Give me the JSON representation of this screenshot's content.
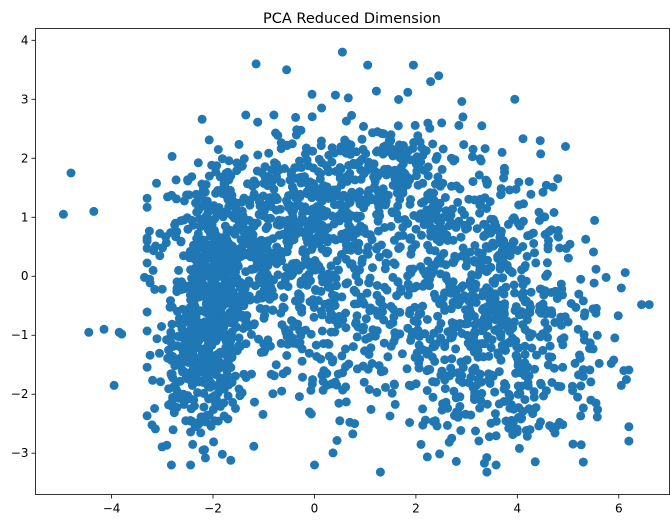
{
  "chart_data": {
    "type": "scatter",
    "title": "PCA Reduced Dimension",
    "xlabel": "",
    "ylabel": "",
    "xlim": [
      -5.5,
      7.0
    ],
    "ylim": [
      -3.7,
      4.2
    ],
    "xticks": [
      -4,
      -2,
      0,
      2,
      4,
      6
    ],
    "xtick_labels": [
      "−4",
      "−2",
      "0",
      "2",
      "4",
      "6"
    ],
    "yticks": [
      -3,
      -2,
      -1,
      0,
      1,
      2,
      3,
      4
    ],
    "ytick_labels": [
      "−3",
      "−2",
      "−1",
      "0",
      "1",
      "2",
      "3",
      "4"
    ],
    "grid": false,
    "legend": "none",
    "series": [
      {
        "color": "#1f77b4",
        "marker": "circle",
        "points": [
          [
            -4.95,
            1.05
          ],
          [
            -4.8,
            1.75
          ],
          [
            -4.35,
            1.1
          ],
          [
            -4.45,
            -0.95
          ],
          [
            -4.15,
            -0.9
          ],
          [
            -3.85,
            -0.95
          ],
          [
            -3.8,
            -0.98
          ],
          [
            -3.95,
            -1.85
          ],
          [
            -3.35,
            -0.02
          ],
          [
            -3.25,
            -0.05
          ],
          [
            -1.15,
            3.6
          ],
          [
            -0.55,
            3.5
          ],
          [
            0.55,
            3.8
          ],
          [
            1.05,
            3.58
          ],
          [
            1.95,
            3.58
          ],
          [
            2.45,
            3.4
          ],
          [
            3.95,
            3.0
          ],
          [
            4.95,
            2.2
          ],
          [
            4.45,
            2.3
          ],
          [
            5.25,
            -0.05
          ],
          [
            5.55,
            0.12
          ],
          [
            5.75,
            -0.02
          ],
          [
            6.05,
            -0.2
          ],
          [
            6.45,
            -0.48
          ],
          [
            6.6,
            -0.48
          ],
          [
            6.1,
            -1.6
          ],
          [
            6.05,
            -1.85
          ],
          [
            6.15,
            -1.75
          ],
          [
            5.85,
            -1.48
          ],
          [
            5.9,
            -1.42
          ],
          [
            5.3,
            -3.15
          ],
          [
            3.4,
            -3.32
          ],
          [
            3.35,
            -3.17
          ],
          [
            1.3,
            -3.32
          ],
          [
            -1.65,
            -3.12
          ],
          [
            -2.15,
            -3.08
          ],
          [
            -2.35,
            -2.55
          ],
          [
            -2.4,
            -2.85
          ],
          [
            0.5,
            -2.45
          ],
          [
            -0.1,
            -2.3
          ],
          [
            5.45,
            -2.1
          ],
          [
            5.55,
            -2.15
          ],
          [
            3.7,
            2.1
          ],
          [
            3.3,
            2.55
          ],
          [
            2.1,
            -2.85
          ],
          [
            2.8,
            -2.3
          ],
          [
            4.25,
            -2.6
          ],
          [
            4.7,
            -2.58
          ],
          [
            5.2,
            -0.9
          ],
          [
            5.3,
            -1.7
          ]
        ],
        "cluster_regions": [
          {
            "cx": -2.05,
            "cy": -0.45,
            "sx": 0.38,
            "sy": 0.95,
            "n": 480
          },
          {
            "cx": -1.3,
            "cy": 0.4,
            "sx": 0.9,
            "sy": 0.85,
            "n": 380
          },
          {
            "cx": 0.4,
            "cy": 1.05,
            "sx": 1.1,
            "sy": 0.75,
            "n": 400
          },
          {
            "cx": 1.6,
            "cy": 1.7,
            "sx": 0.8,
            "sy": 0.55,
            "n": 140
          },
          {
            "cx": 2.7,
            "cy": -0.3,
            "sx": 1.0,
            "sy": 0.9,
            "n": 330
          },
          {
            "cx": 4.1,
            "cy": -0.85,
            "sx": 0.85,
            "sy": 0.9,
            "n": 200
          },
          {
            "cx": -2.4,
            "cy": -1.7,
            "sx": 0.4,
            "sy": 0.5,
            "n": 120
          },
          {
            "cx": 0.2,
            "cy": -1.1,
            "sx": 1.0,
            "sy": 0.75,
            "n": 140
          },
          {
            "cx": 3.2,
            "cy": -2.1,
            "sx": 1.2,
            "sy": 0.45,
            "n": 110
          },
          {
            "cx": 3.6,
            "cy": 0.9,
            "sx": 0.8,
            "sy": 0.6,
            "n": 90
          }
        ]
      }
    ]
  }
}
